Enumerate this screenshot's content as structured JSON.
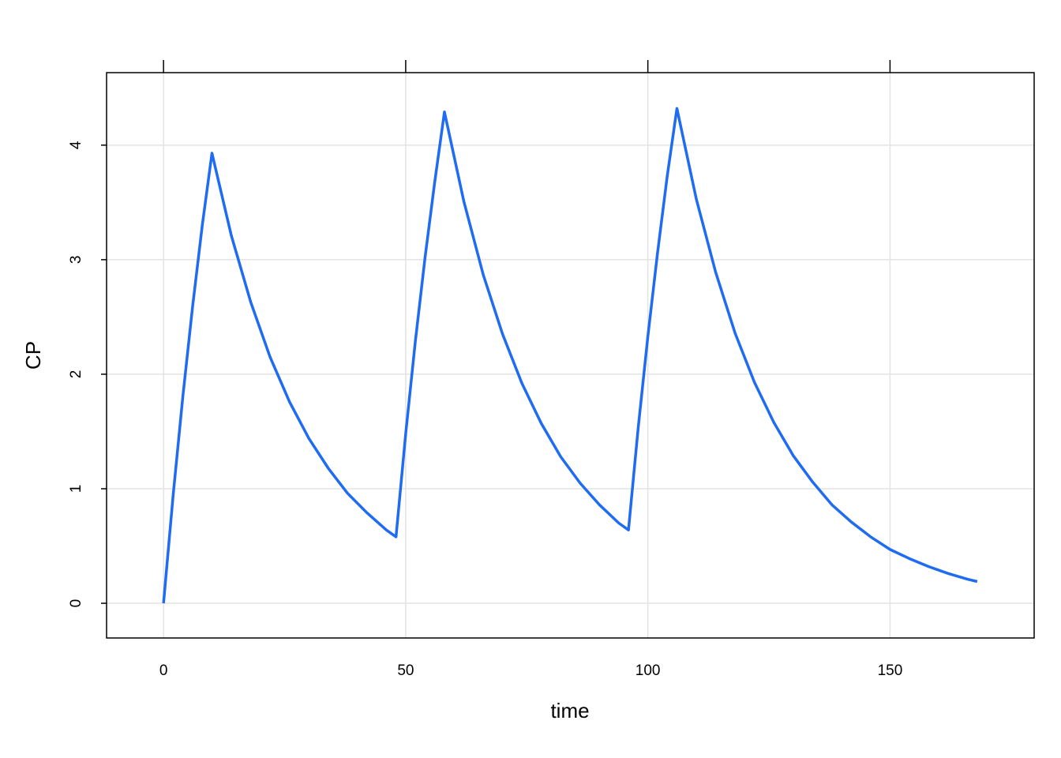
{
  "chart_data": {
    "type": "line",
    "x_label": "time",
    "y_label": "CP",
    "x": [
      0,
      2,
      4,
      6,
      8,
      10,
      14,
      18,
      22,
      26,
      30,
      34,
      38,
      42,
      46,
      48,
      50,
      52,
      54,
      56,
      58,
      62,
      66,
      70,
      74,
      78,
      82,
      86,
      90,
      94,
      96,
      98,
      100,
      102,
      104,
      106,
      110,
      114,
      118,
      122,
      126,
      130,
      134,
      138,
      142,
      146,
      150,
      154,
      158,
      162,
      166,
      168
    ],
    "series": [
      {
        "color": "#1f6cf2",
        "values": [
          0,
          0.95,
          1.81,
          2.59,
          3.3,
          3.93,
          3.21,
          2.63,
          2.15,
          1.76,
          1.44,
          1.18,
          0.96,
          0.79,
          0.64,
          0.58,
          1.48,
          2.29,
          3.02,
          3.68,
          4.29,
          3.51,
          2.87,
          2.35,
          1.92,
          1.57,
          1.28,
          1.05,
          0.86,
          0.7,
          0.64,
          1.53,
          2.33,
          3.06,
          3.73,
          4.32,
          3.53,
          2.89,
          2.36,
          1.93,
          1.58,
          1.29,
          1.06,
          0.86,
          0.71,
          0.58,
          0.47,
          0.39,
          0.32,
          0.26,
          0.21,
          0.19
        ]
      }
    ],
    "xlim": [
      -11.76,
      179.76
    ],
    "ylim": [
      -0.303,
      4.633
    ],
    "xticks": [
      0,
      50,
      100,
      150
    ],
    "yticks": [
      0,
      1,
      2,
      3,
      4
    ],
    "grid": true
  }
}
